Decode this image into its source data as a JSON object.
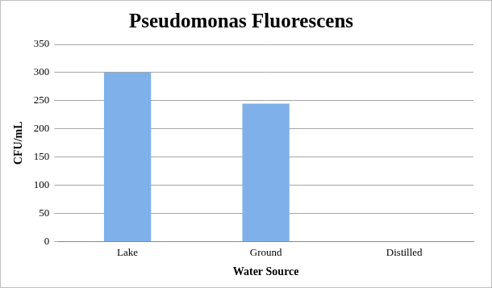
{
  "chart_data": {
    "type": "bar",
    "title": "Pseudomonas Fluorescens",
    "x_label": "Water Source",
    "y_label": "CFU/mL",
    "categories": [
      "Lake",
      "Ground",
      "Distilled"
    ],
    "values": [
      300,
      245,
      0
    ],
    "color": "#7fb0ea",
    "ylim": [
      0,
      350
    ],
    "yticks": [
      0,
      50,
      100,
      150,
      200,
      250,
      300,
      350
    ],
    "grid": true
  }
}
